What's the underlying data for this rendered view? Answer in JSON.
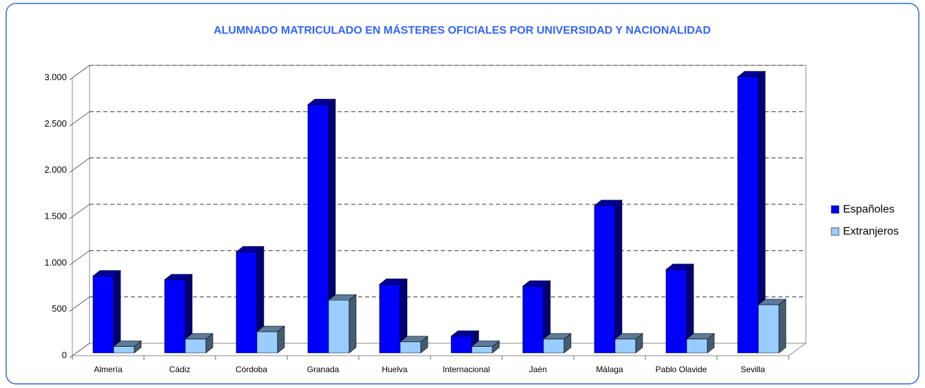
{
  "chart_data": {
    "type": "bar3d",
    "title": "ALUMNADO MATRICULADO EN MÁSTERES OFICIALES POR UNIVERSIDAD Y NACIONALIDAD",
    "categories": [
      "Almería",
      "Cádiz",
      "Córdoba",
      "Granada",
      "Huelva",
      "Internacional",
      "Jaén",
      "Málaga",
      "Pablo Olavide",
      "Sevilla"
    ],
    "series": [
      {
        "name": "Españoles",
        "color": "#0000ff",
        "values": [
          830,
          790,
          1090,
          2680,
          740,
          180,
          720,
          1590,
          900,
          2980
        ]
      },
      {
        "name": "Extranjeros",
        "color": "#99ccff",
        "values": [
          70,
          150,
          230,
          570,
          120,
          70,
          150,
          150,
          150,
          520
        ]
      }
    ],
    "ylim": [
      0,
      3000
    ],
    "yticks": [
      0,
      500,
      {
        "value": 1000,
        "label": "1.000"
      },
      {
        "value": 1500,
        "label": "1.500"
      },
      {
        "value": 2000,
        "label": "2.000"
      },
      {
        "value": 2500,
        "label": "2.500"
      },
      {
        "value": 3000,
        "label": "3.000"
      }
    ],
    "grid": true,
    "legend": "right"
  }
}
